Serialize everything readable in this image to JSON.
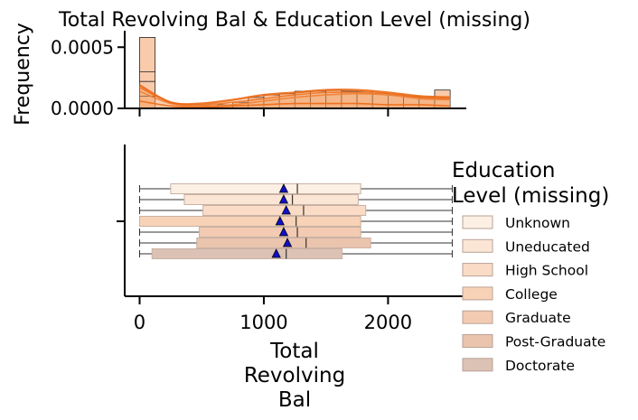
{
  "chart_data": {
    "type": "histogram+boxplot",
    "title": "Total Revolving Bal & Education Level (missing)",
    "histogram": {
      "ylabel": "Frequency",
      "y_ticks": [
        "0.0000",
        "0.0005"
      ],
      "y_tick_values": [
        0,
        0.0005
      ],
      "ylim": [
        0,
        0.00062
      ],
      "bin_edges": [
        0,
        125,
        250,
        375,
        500,
        625,
        750,
        875,
        1000,
        1125,
        1250,
        1375,
        1500,
        1625,
        1750,
        1875,
        2000,
        2125,
        2250,
        2375,
        2500
      ],
      "bars": [
        0.00058,
        0.0,
        0.0,
        0.0,
        2e-05,
        3e-05,
        5e-05,
        9e-05,
        0.00011,
        0.00012,
        0.00014,
        0.00014,
        0.00015,
        0.00014,
        0.00014,
        0.00012,
        0.00011,
        0.0001,
        9e-05,
        0.00015
      ],
      "kde": [
        {
          "name": "Unknown",
          "values": [
            0.00014,
            4e-05,
            2e-05,
            3e-05,
            6e-05,
            9e-05,
            0.00011,
            0.00012,
            0.00011,
            8e-05,
            7e-05
          ]
        },
        {
          "name": "Uneducated",
          "values": [
            0.00017,
            5e-05,
            3e-05,
            5e-05,
            8e-05,
            0.00011,
            0.00013,
            0.00013,
            0.00012,
            9e-05,
            8e-05
          ]
        },
        {
          "name": "Graduate",
          "values": [
            0.00019,
            5e-05,
            4e-05,
            7e-05,
            0.00011,
            0.00013,
            0.00015,
            0.00015,
            0.00013,
            0.0001,
            9e-05
          ]
        },
        {
          "name": "Doctorate",
          "values": [
            6e-05,
            2e-05,
            1e-05,
            2e-05,
            3e-05,
            4e-05,
            4e-05,
            4e-05,
            3e-05,
            3e-05,
            2e-05
          ]
        }
      ]
    },
    "boxplot": {
      "xlabel": "Total Revolving Bal",
      "xlabel_lines": [
        "Total",
        "Revolving",
        "Bal"
      ],
      "x_ticks": [
        0,
        1000,
        2000
      ],
      "xlim": [
        -120,
        2630
      ],
      "legend_title_lines": [
        "Education",
        "Level (missing)"
      ],
      "legend_location": "right",
      "series": [
        {
          "name": "Unknown",
          "min": 0,
          "q1": 250,
          "median": 1270,
          "q3": 1780,
          "max": 2517,
          "mean": 1160,
          "color": "#fcefe4"
        },
        {
          "name": "Uneducated",
          "min": 0,
          "q1": 360,
          "median": 1230,
          "q3": 1760,
          "max": 2517,
          "mean": 1160,
          "color": "#fbe6d6"
        },
        {
          "name": "High School",
          "min": 0,
          "q1": 510,
          "median": 1320,
          "q3": 1820,
          "max": 2517,
          "mean": 1180,
          "color": "#fadcc6"
        },
        {
          "name": "College",
          "min": 0,
          "q1": 0,
          "median": 1260,
          "q3": 1780,
          "max": 2517,
          "mean": 1130,
          "color": "#f8d2b6"
        },
        {
          "name": "Graduate",
          "min": 0,
          "q1": 480,
          "median": 1270,
          "q3": 1780,
          "max": 2517,
          "mean": 1160,
          "color": "#f3cbb2"
        },
        {
          "name": "Post-Graduate",
          "min": 0,
          "q1": 460,
          "median": 1340,
          "q3": 1860,
          "max": 2517,
          "mean": 1190,
          "color": "#ebc4ae"
        },
        {
          "name": "Doctorate",
          "min": 0,
          "q1": 100,
          "median": 1180,
          "q3": 1630,
          "max": 2517,
          "mean": 1100,
          "color": "#dcc2b5"
        }
      ]
    },
    "colors": {
      "kde_line": "#ec6a16",
      "kde_fill": "#f6a26a",
      "hist_bar": "#f9cbab",
      "edge": "#222222",
      "mean_marker": "#1010cc"
    }
  }
}
